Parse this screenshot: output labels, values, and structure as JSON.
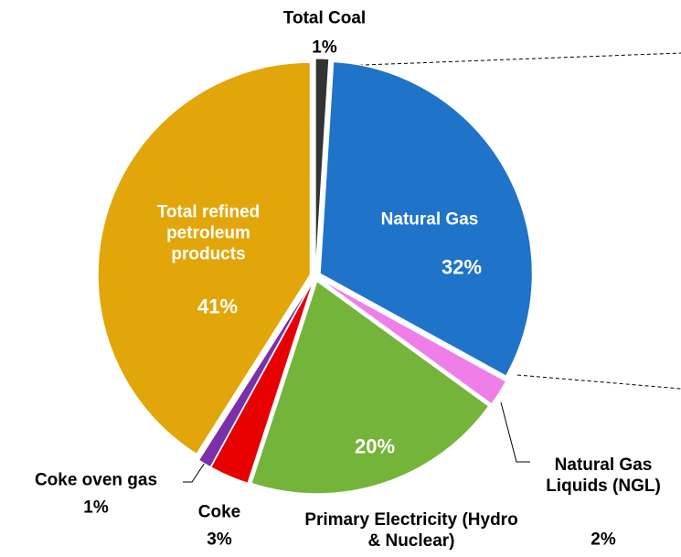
{
  "chart_data": {
    "type": "pie",
    "categories": [
      "Total Coal",
      "Natural Gas",
      "Natural Gas Liquids (NGL)",
      "Primary Electricity (Hydro & Nuclear)",
      "Coke",
      "Coke oven gas",
      "Total refined petroleum products"
    ],
    "values": [
      1,
      32,
      2,
      20,
      3,
      1,
      41
    ],
    "value_labels": [
      "1%",
      "32%",
      "2%",
      "20%",
      "3%",
      "1%",
      "41%"
    ],
    "colors": [
      "#333333",
      "#1f73c9",
      "#f07ee8",
      "#74b43a",
      "#e60000",
      "#7a30a8",
      "#e2a60a"
    ]
  }
}
